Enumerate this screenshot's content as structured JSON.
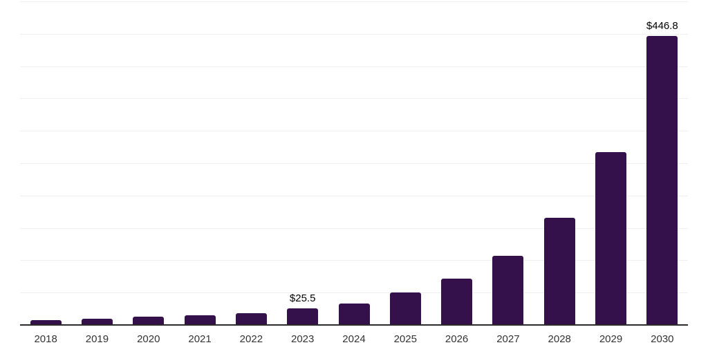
{
  "chart_data": {
    "type": "bar",
    "title": "",
    "xlabel": "",
    "ylabel": "",
    "categories": [
      "2018",
      "2019",
      "2020",
      "2021",
      "2022",
      "2023",
      "2024",
      "2025",
      "2026",
      "2027",
      "2028",
      "2029",
      "2030"
    ],
    "values": [
      8,
      10,
      12.5,
      15,
      18,
      25.5,
      33.4,
      50,
      72,
      106.8,
      166,
      267,
      446.8
    ],
    "labeled_points": [
      {
        "category": "2023",
        "label": "$25.5"
      },
      {
        "category": "2030",
        "label": "$446.8"
      }
    ],
    "ylim": [
      0,
      500
    ],
    "gridline_step": 50,
    "grid": true,
    "legend": false,
    "y_tick_labels_visible": false,
    "bar_color": "#35114B",
    "axis_line_color": "#2b2b2b",
    "gridline_color": "#f0f0f0",
    "tick_label_color": "#333333",
    "data_label_color": "#000000"
  }
}
